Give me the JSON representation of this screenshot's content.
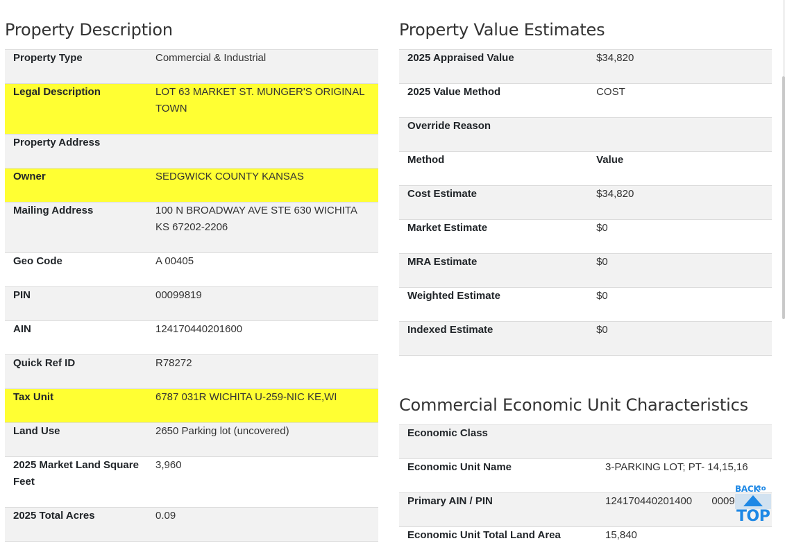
{
  "property_description": {
    "title": "Property Description",
    "rows": [
      {
        "label": "Property Type",
        "value": "Commercial & Industrial"
      },
      {
        "label": "Legal Description",
        "value": "LOT 63 MARKET ST. MUNGER'S ORIGINAL TOWN"
      },
      {
        "label": "Property Address",
        "value": ""
      },
      {
        "label": "Owner",
        "value": "SEDGWICK COUNTY KANSAS"
      },
      {
        "label": "Mailing Address",
        "value": "100 N BROADWAY AVE STE 630 WICHITA KS 67202-2206"
      },
      {
        "label": "Geo Code",
        "value": "A 00405"
      },
      {
        "label": "PIN",
        "value": "00099819"
      },
      {
        "label": "AIN",
        "value": "124170440201600"
      },
      {
        "label": "Quick Ref ID",
        "value": "R78272"
      },
      {
        "label": "Tax Unit",
        "value": "6787 031R WICHITA U-259-NIC KE,WI"
      },
      {
        "label": "Land Use",
        "value": "2650 Parking lot (uncovered)"
      },
      {
        "label": "2025 Market Land Square Feet",
        "value": "3,960"
      },
      {
        "label": "2025 Total Acres",
        "value": "0.09"
      }
    ]
  },
  "property_value_estimates": {
    "title": "Property Value Estimates",
    "rows": [
      {
        "label": "2025 Appraised Value",
        "value": "$34,820"
      },
      {
        "label": "2025 Value Method",
        "value": "COST"
      },
      {
        "label": "Override Reason",
        "value": ""
      },
      {
        "label": "Method",
        "value": "Value"
      },
      {
        "label": "Cost Estimate",
        "value": "$34,820"
      },
      {
        "label": "Market Estimate",
        "value": "$0"
      },
      {
        "label": "MRA Estimate",
        "value": "$0"
      },
      {
        "label": "Weighted Estimate",
        "value": "$0"
      },
      {
        "label": "Indexed Estimate",
        "value": "$0"
      }
    ]
  },
  "commercial_economic_unit": {
    "title": "Commercial Economic Unit Characteristics",
    "rows": [
      {
        "label": "Economic Class",
        "value": ""
      },
      {
        "label": "Economic Unit Name",
        "value": "3-PARKING LOT; PT- 14,15,16"
      },
      {
        "label": "Primary AIN / PIN",
        "value": "124170440201400",
        "value2": "0009"
      },
      {
        "label": "Economic Unit Total Land Area",
        "value": "15,840"
      }
    ]
  },
  "back_to_top": {
    "back": "BACK",
    "to": "to",
    "top": "TOP"
  },
  "colors": {
    "highlight": "#ffff33",
    "row_shade": "#f2f2f2",
    "accent": "#1e88e5"
  }
}
